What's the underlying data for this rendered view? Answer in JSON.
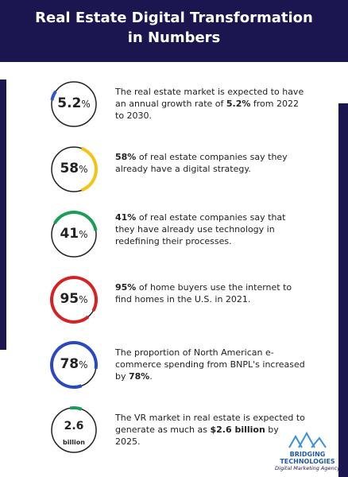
{
  "header": {
    "title_lines": [
      "Real  Estate Digital Transformation",
      "in Numbers"
    ]
  },
  "stats": [
    {
      "value": "5.2",
      "unit": "%",
      "text": [
        {
          "t": "The real estate market is expected to have an annual growth rate of ",
          "b": false
        },
        {
          "t": "5.2%",
          "b": true
        },
        {
          "t": " from 2022 to 2030.",
          "b": false
        }
      ]
    },
    {
      "value": "58",
      "unit": "%",
      "text": [
        {
          "t": "58%",
          "b": true
        },
        {
          "t": " of real estate companies say they already have a digital strategy.",
          "b": false
        }
      ]
    },
    {
      "value": "41",
      "unit": "%",
      "text": [
        {
          "t": "41%",
          "b": true
        },
        {
          "t": " of real estate companies say that they have already use technology in redefining their processes.",
          "b": false
        }
      ]
    },
    {
      "value": "95",
      "unit": "%",
      "text": [
        {
          "t": "95%",
          "b": true
        },
        {
          "t": " of home buyers use the internet to find homes in the U.S. in 2021.",
          "b": false
        }
      ]
    },
    {
      "value": "78",
      "unit": "%",
      "text": [
        {
          "t": "The proportion of North American e-commerce spending from BNPL's increased by ",
          "b": false
        },
        {
          "t": "78%",
          "b": true
        },
        {
          "t": ".",
          "b": false
        }
      ]
    },
    {
      "value": "2.6",
      "unit": "billion",
      "text": [
        {
          "t": "The VR market in real estate is expected to generate as much as ",
          "b": false
        },
        {
          "t": "$2.6 billion",
          "b": true
        },
        {
          "t": " by 2025.",
          "b": false
        }
      ]
    }
  ],
  "logo": {
    "name_lines": [
      "BRIDGING",
      "TECHNOLOGIES"
    ],
    "tagline": "Digital Marketing Agency"
  }
}
